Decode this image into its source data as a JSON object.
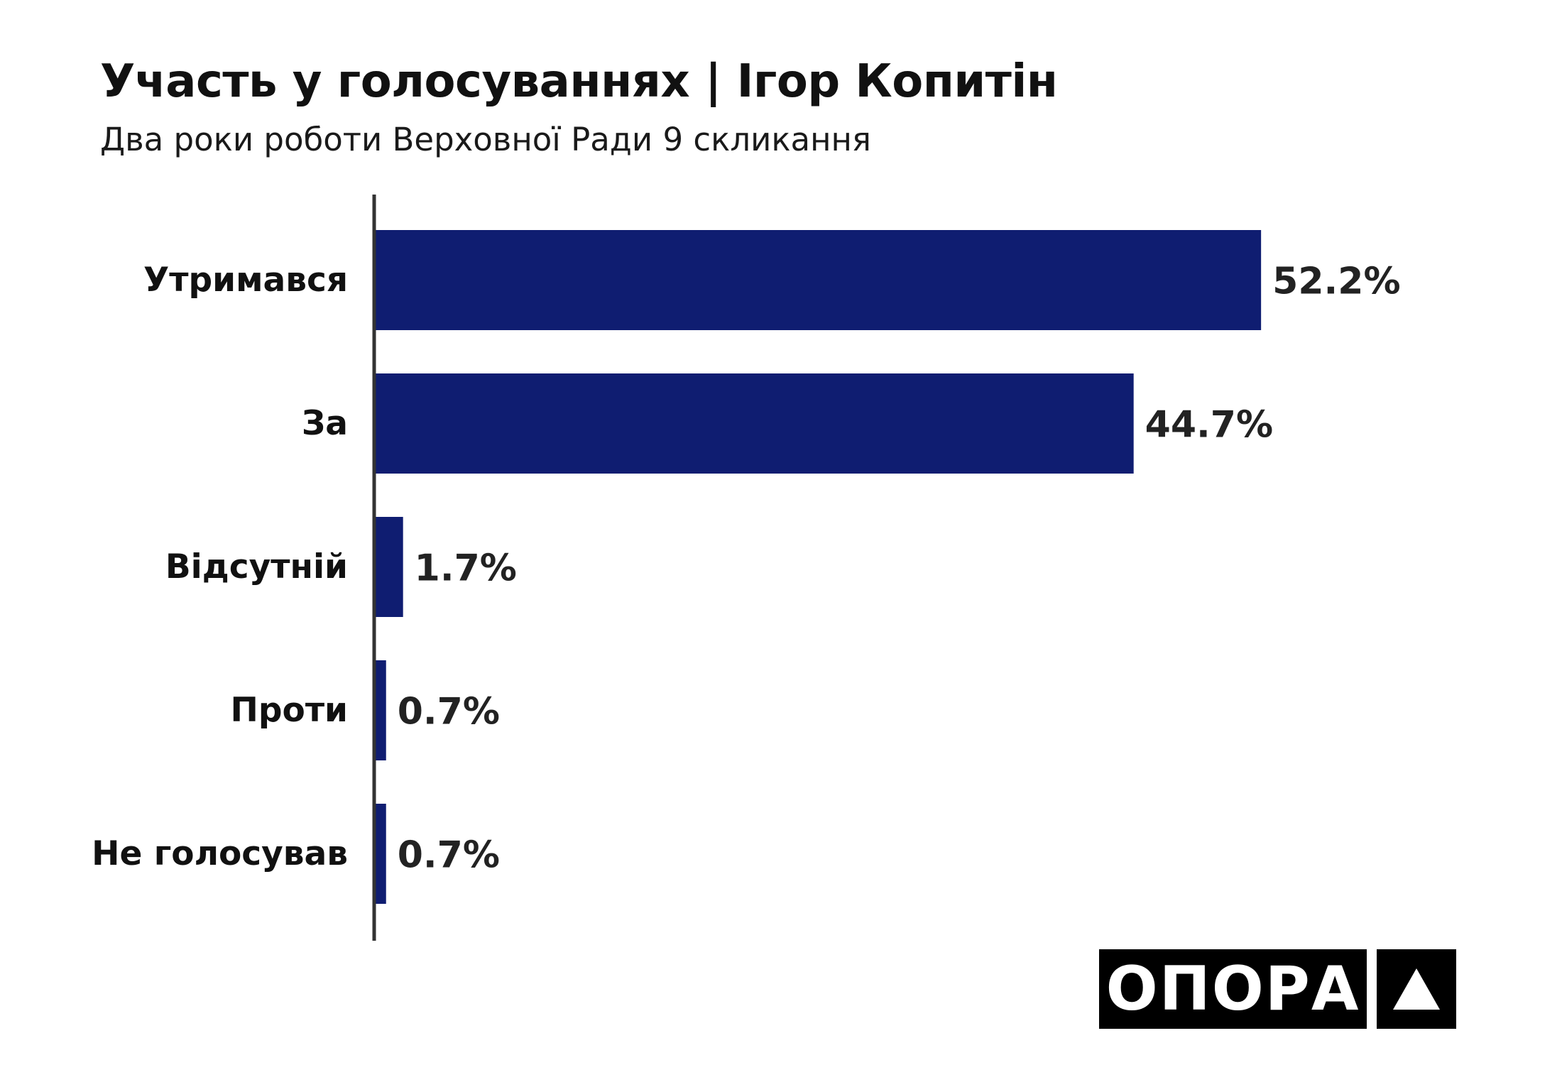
{
  "header": {
    "title": "Участь у голосуваннях | Ігор Копитін",
    "subtitle": "Два роки роботи Верховної Ради 9 скликання"
  },
  "logo": {
    "text": "ОПОРА",
    "mark_icon": "triangle-icon"
  },
  "colors": {
    "bar": "#0f1d71",
    "axis": "#333333",
    "text": "#111111"
  },
  "chart_data": {
    "type": "bar",
    "orientation": "horizontal",
    "categories": [
      "Утримався",
      "За",
      "Відсутній",
      "Проти",
      "Не голосував"
    ],
    "values": [
      52.2,
      44.7,
      1.7,
      0.7,
      0.7
    ],
    "value_labels": [
      "52.2%",
      "44.7%",
      "1.7%",
      "0.7%",
      "0.7%"
    ],
    "unit": "%",
    "xlim": [
      0,
      60
    ],
    "grid": false,
    "legend": "none"
  }
}
